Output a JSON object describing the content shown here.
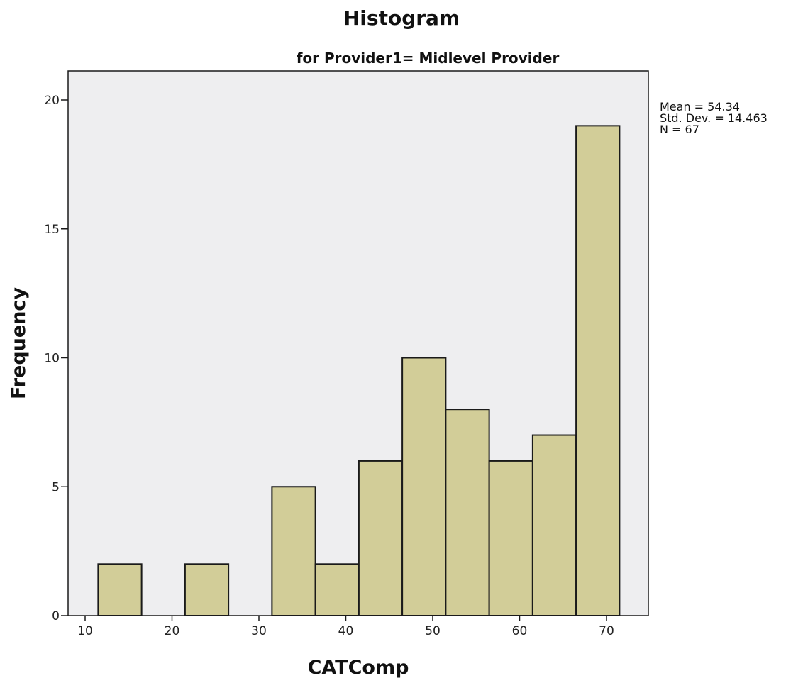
{
  "chart_data": {
    "type": "bar",
    "title": "Histogram",
    "subtitle": "for Provider1= Midlevel Provider",
    "xlabel": "CATComp",
    "ylabel": "Frequency",
    "xlim": [
      8,
      76
    ],
    "ylim": [
      0,
      21
    ],
    "x_ticks": [
      10,
      20,
      30,
      40,
      50,
      60,
      70
    ],
    "y_ticks": [
      0,
      5,
      10,
      15,
      20
    ],
    "bin_width": 5,
    "bins": [
      {
        "start": 11.5,
        "end": 16.5,
        "value": 2
      },
      {
        "start": 16.5,
        "end": 21.5,
        "value": 0
      },
      {
        "start": 21.5,
        "end": 26.5,
        "value": 2
      },
      {
        "start": 26.5,
        "end": 31.5,
        "value": 0
      },
      {
        "start": 31.5,
        "end": 36.5,
        "value": 5
      },
      {
        "start": 36.5,
        "end": 41.5,
        "value": 2
      },
      {
        "start": 41.5,
        "end": 46.5,
        "value": 6
      },
      {
        "start": 46.5,
        "end": 51.5,
        "value": 10
      },
      {
        "start": 51.5,
        "end": 56.5,
        "value": 8
      },
      {
        "start": 56.5,
        "end": 61.5,
        "value": 6
      },
      {
        "start": 61.5,
        "end": 66.5,
        "value": 7
      },
      {
        "start": 66.5,
        "end": 71.5,
        "value": 19
      }
    ],
    "grid": false,
    "stats": {
      "mean": "Mean = 54.34",
      "std": "Std. Dev. = 14.463",
      "n": "N = 67"
    },
    "colors": {
      "bar_fill": "#d2cd98",
      "bar_stroke": "#1a1a1a",
      "plot_background": "#eeeef0",
      "axis": "#1a1a1a"
    }
  }
}
